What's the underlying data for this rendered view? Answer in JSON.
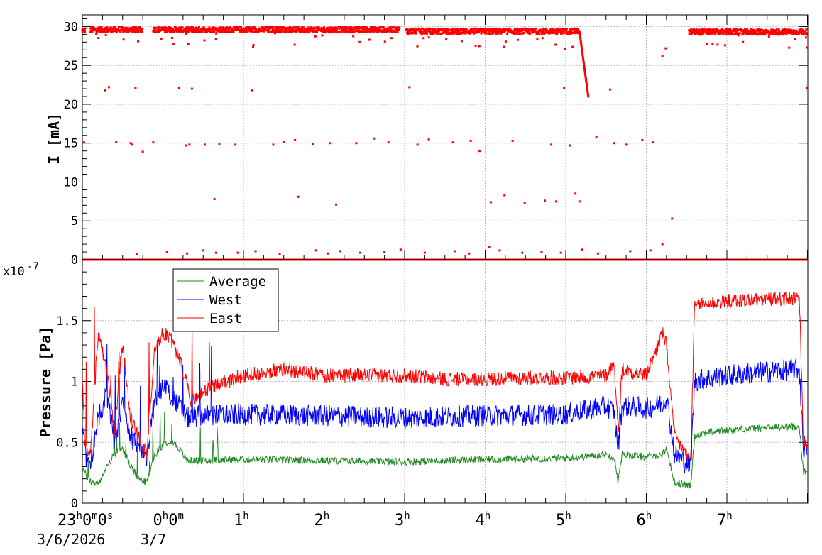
{
  "chart_data": [
    {
      "type": "scatter",
      "ylabel": "I [mA]",
      "ylim": [
        0,
        31.5
      ],
      "yticks": [
        0,
        5,
        10,
        15,
        20,
        25,
        30
      ],
      "grid": true,
      "color": "#ff0000",
      "x_unit": "hours since 3/6/2026 23:00",
      "xlim": [
        0,
        9
      ],
      "current_segments": [
        {
          "from": 0.0,
          "to": 0.04,
          "level": 29.5
        },
        {
          "from": 0.1,
          "to": 0.75,
          "level": 29.6
        },
        {
          "from": 0.88,
          "to": 3.94,
          "level": 29.6
        },
        {
          "from": 4.02,
          "to": 6.17,
          "level": 29.4
        },
        {
          "from": 7.53,
          "to": 9.0,
          "level": 29.3
        }
      ],
      "current_ramp": {
        "from": 6.17,
        "to": 6.28,
        "start": 29.4,
        "end": 21.0
      },
      "current_outliers": [
        [
          0.02,
          15.1
        ],
        [
          0.28,
          21.8
        ],
        [
          0.33,
          22.2
        ],
        [
          0.42,
          15.2
        ],
        [
          0.6,
          15.0
        ],
        [
          0.62,
          14.8
        ],
        [
          0.66,
          22.1
        ],
        [
          0.75,
          13.9
        ],
        [
          0.88,
          15.1
        ],
        [
          1.2,
          22.1
        ],
        [
          1.29,
          14.7
        ],
        [
          1.33,
          14.8
        ],
        [
          1.36,
          22.0
        ],
        [
          1.52,
          14.8
        ],
        [
          1.64,
          7.8
        ],
        [
          1.7,
          14.9
        ],
        [
          1.9,
          14.8
        ],
        [
          2.11,
          21.8
        ],
        [
          2.37,
          14.8
        ],
        [
          2.5,
          15.2
        ],
        [
          2.64,
          15.4
        ],
        [
          2.68,
          8.1
        ],
        [
          2.86,
          14.9
        ],
        [
          3.07,
          15.0
        ],
        [
          3.15,
          7.1
        ],
        [
          3.4,
          15.0
        ],
        [
          3.62,
          15.6
        ],
        [
          3.8,
          15.1
        ],
        [
          4.06,
          22.2
        ],
        [
          4.16,
          14.8
        ],
        [
          4.3,
          15.5
        ],
        [
          4.6,
          15.1
        ],
        [
          4.82,
          15.3
        ],
        [
          4.93,
          14.0
        ],
        [
          5.07,
          7.4
        ],
        [
          5.24,
          8.3
        ],
        [
          5.34,
          15.3
        ],
        [
          5.49,
          7.3
        ],
        [
          5.74,
          7.6
        ],
        [
          5.82,
          14.8
        ],
        [
          5.88,
          7.5
        ],
        [
          5.98,
          22.1
        ],
        [
          6.05,
          14.7
        ],
        [
          6.12,
          8.5
        ],
        [
          6.17,
          7.5
        ],
        [
          6.38,
          15.8
        ],
        [
          6.55,
          21.9
        ],
        [
          6.6,
          15.0
        ],
        [
          6.75,
          14.8
        ],
        [
          6.95,
          15.4
        ],
        [
          7.08,
          15.1
        ],
        [
          7.2,
          26.2
        ],
        [
          7.24,
          27.2
        ],
        [
          7.32,
          5.3
        ],
        [
          8.99,
          22.1
        ]
      ],
      "current_zero_points": [
        [
          0.68,
          0.7
        ],
        [
          1.05,
          1.0
        ],
        [
          1.3,
          0.8
        ],
        [
          1.5,
          1.2
        ],
        [
          1.66,
          0.9
        ],
        [
          1.93,
          0.9
        ],
        [
          2.15,
          1.1
        ],
        [
          2.45,
          0.7
        ],
        [
          2.9,
          1.2
        ],
        [
          3.05,
          0.8
        ],
        [
          3.2,
          1.1
        ],
        [
          3.45,
          0.9
        ],
        [
          3.75,
          1.0
        ],
        [
          3.95,
          1.3
        ],
        [
          4.25,
          0.9
        ],
        [
          4.62,
          1.1
        ],
        [
          4.8,
          0.8
        ],
        [
          5.05,
          1.6
        ],
        [
          5.18,
          1.2
        ],
        [
          5.46,
          0.9
        ],
        [
          5.7,
          1.0
        ],
        [
          5.94,
          0.9
        ],
        [
          6.2,
          1.3
        ],
        [
          6.4,
          0.8
        ],
        [
          6.8,
          1.1
        ],
        [
          7.05,
          1.2
        ],
        [
          7.2,
          2.0
        ]
      ]
    },
    {
      "type": "line",
      "ylabel": "Pressure [Pa]",
      "y_scale_label": "x10",
      "y_scale_exp": "-7",
      "ylim": [
        0,
        2.0
      ],
      "yticks": [
        "0",
        "0.5",
        "1",
        "1.5"
      ],
      "ytick_values": [
        0,
        0.5,
        1,
        1.5
      ],
      "grid": true,
      "xlim": [
        0,
        9
      ],
      "xticks": [
        {
          "x": 0,
          "hour": "23",
          "sup": "h",
          "rest": "0",
          "sup2": "m",
          "rest2": "0",
          "sup3": "s"
        },
        {
          "x": 1,
          "hour": "0",
          "sup": "h",
          "rest": "0",
          "sup2": "m"
        },
        {
          "x": 2,
          "hour": "1",
          "sup": "h"
        },
        {
          "x": 3,
          "hour": "2",
          "sup": "h"
        },
        {
          "x": 4,
          "hour": "3",
          "sup": "h"
        },
        {
          "x": 5,
          "hour": "4",
          "sup": "h"
        },
        {
          "x": 6,
          "hour": "5",
          "sup": "h"
        },
        {
          "x": 7,
          "hour": "6",
          "sup": "h"
        },
        {
          "x": 8,
          "hour": "7",
          "sup": "h"
        }
      ],
      "date_labels": [
        "3/6/2026",
        "3/7"
      ],
      "legend": {
        "position": "top-left",
        "entries": [
          "Average",
          "West",
          "East"
        ]
      },
      "series": [
        {
          "name": "Average",
          "color": "#228b22",
          "x": [
            0.0,
            0.05,
            0.1,
            0.2,
            0.3,
            0.4,
            0.5,
            0.6,
            0.7,
            0.8,
            0.9,
            1.0,
            1.1,
            1.2,
            1.3,
            1.5,
            2.0,
            3.0,
            4.0,
            5.0,
            6.0,
            6.5,
            6.6,
            6.65,
            6.7,
            7.0,
            7.2,
            7.25,
            7.35,
            7.5,
            7.55,
            7.6,
            7.7,
            8.0,
            8.5,
            8.9,
            8.95,
            9.0
          ],
          "y": [
            0.3,
            0.22,
            0.18,
            0.15,
            0.3,
            0.4,
            0.45,
            0.3,
            0.2,
            0.17,
            0.4,
            0.48,
            0.52,
            0.45,
            0.35,
            0.35,
            0.36,
            0.35,
            0.34,
            0.36,
            0.37,
            0.4,
            0.38,
            0.18,
            0.4,
            0.38,
            0.4,
            0.45,
            0.17,
            0.15,
            0.14,
            0.55,
            0.58,
            0.6,
            0.62,
            0.63,
            0.25,
            0.26
          ],
          "noise": 0.03
        },
        {
          "name": "West",
          "color": "#0000ff",
          "x": [
            0.0,
            0.05,
            0.1,
            0.2,
            0.3,
            0.4,
            0.5,
            0.6,
            0.7,
            0.8,
            0.9,
            1.0,
            1.1,
            1.2,
            1.3,
            1.5,
            2.0,
            3.0,
            4.0,
            5.0,
            6.0,
            6.5,
            6.6,
            6.65,
            6.7,
            7.0,
            7.2,
            7.25,
            7.35,
            7.5,
            7.55,
            7.6,
            7.7,
            8.0,
            8.5,
            8.9,
            8.95,
            9.0
          ],
          "y": [
            0.6,
            0.35,
            0.3,
            0.7,
            0.9,
            0.5,
            0.8,
            0.55,
            0.45,
            0.38,
            0.85,
            0.95,
            0.9,
            0.8,
            0.7,
            0.72,
            0.73,
            0.72,
            0.7,
            0.72,
            0.73,
            0.8,
            0.75,
            0.45,
            0.8,
            0.78,
            0.82,
            0.88,
            0.4,
            0.33,
            0.3,
            1.0,
            1.02,
            1.05,
            1.08,
            1.1,
            0.45,
            0.45
          ],
          "noise": 0.09
        },
        {
          "name": "East",
          "color": "#ff0000",
          "x": [
            0.0,
            0.03,
            0.1,
            0.2,
            0.3,
            0.4,
            0.5,
            0.6,
            0.7,
            0.8,
            0.9,
            1.0,
            1.1,
            1.2,
            1.35,
            1.6,
            2.0,
            2.5,
            3.0,
            3.5,
            4.0,
            4.5,
            5.0,
            5.5,
            6.0,
            6.5,
            6.6,
            6.65,
            6.7,
            7.0,
            7.2,
            7.25,
            7.35,
            7.5,
            7.55,
            7.6,
            7.7,
            8.0,
            8.5,
            8.9,
            8.95,
            9.0
          ],
          "y": [
            1.05,
            0.5,
            0.4,
            1.4,
            1.1,
            0.6,
            1.3,
            0.7,
            0.55,
            0.4,
            1.3,
            1.4,
            1.35,
            1.2,
            0.85,
            0.95,
            1.05,
            1.1,
            1.05,
            1.05,
            1.05,
            1.02,
            1.02,
            1.03,
            1.03,
            1.05,
            1.15,
            0.6,
            1.1,
            1.05,
            1.4,
            1.3,
            0.55,
            0.4,
            0.35,
            1.62,
            1.64,
            1.66,
            1.68,
            1.68,
            0.5,
            0.5
          ],
          "noise": 0.06
        }
      ]
    }
  ]
}
